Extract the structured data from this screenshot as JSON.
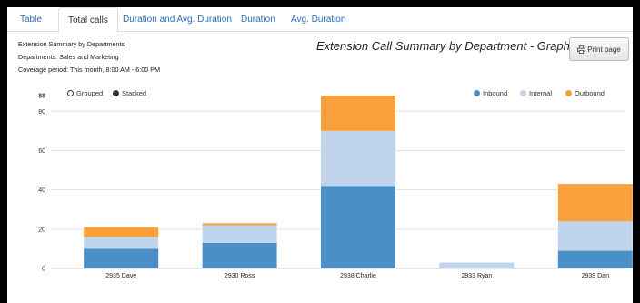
{
  "tabs": [
    {
      "label": "Table"
    },
    {
      "label": "Total calls"
    },
    {
      "label": "Duration and Avg. Duration"
    },
    {
      "label": "Duration"
    },
    {
      "label": "Avg. Duration"
    }
  ],
  "info": {
    "line1": "Extension Summary by Departments",
    "line2": "Departments: Sales and Marketing",
    "line3": "Coverage period: This month, 8:00 AM - 6:00 PM"
  },
  "graph_title": "Extension Call Summary by Department - Graph",
  "print_label": "Print page",
  "mode_options": {
    "grouped": "Grouped",
    "stacked": "Stacked",
    "selected": "Stacked"
  },
  "colors": {
    "inbound": "#4a8fc7",
    "internal": "#c0d4ec",
    "outbound": "#f7a03c"
  },
  "chart_data": {
    "type": "bar",
    "stacked": true,
    "categories": [
      "2935 Dave",
      "2930 Ross",
      "2938 Charlie",
      "2933 Ryan",
      "2939 Dan"
    ],
    "series": [
      {
        "name": "Inbound",
        "values": [
          10,
          13,
          42,
          0,
          9
        ]
      },
      {
        "name": "Internal",
        "values": [
          6,
          9,
          28,
          3,
          15
        ]
      },
      {
        "name": "Outbound",
        "values": [
          5,
          1,
          18,
          0,
          19
        ]
      }
    ],
    "yticks": [
      0,
      20,
      40,
      60,
      80,
      88
    ],
    "ylim": [
      0,
      88
    ],
    "legend_position": "top-right",
    "grid": true
  }
}
